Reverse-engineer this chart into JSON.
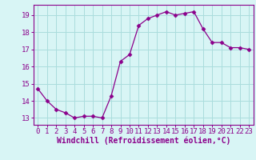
{
  "x": [
    0,
    1,
    2,
    3,
    4,
    5,
    6,
    7,
    8,
    9,
    10,
    11,
    12,
    13,
    14,
    15,
    16,
    17,
    18,
    19,
    20,
    21,
    22,
    23
  ],
  "y": [
    14.7,
    14.0,
    13.5,
    13.3,
    13.0,
    13.1,
    13.1,
    13.0,
    14.3,
    16.3,
    16.7,
    18.4,
    18.8,
    19.0,
    19.2,
    19.0,
    19.1,
    19.2,
    18.2,
    17.4,
    17.4,
    17.1,
    17.1,
    17.0
  ],
  "line_color": "#8B008B",
  "marker": "D",
  "marker_size": 2.5,
  "bg_color": "#d8f5f5",
  "grid_color": "#aadddd",
  "xlabel": "Windchill (Refroidissement éolien,°C)",
  "xlabel_color": "#8B008B",
  "xlabel_fontsize": 7,
  "ylim": [
    12.6,
    19.6
  ],
  "yticks": [
    13,
    14,
    15,
    16,
    17,
    18,
    19
  ],
  "xtick_labels": [
    "0",
    "1",
    "2",
    "3",
    "4",
    "5",
    "6",
    "7",
    "8",
    "9",
    "10",
    "11",
    "12",
    "13",
    "14",
    "15",
    "16",
    "17",
    "18",
    "19",
    "20",
    "21",
    "22",
    "23"
  ],
  "tick_color": "#8B008B",
  "tick_fontsize": 6.5,
  "border_color": "#8B008B",
  "xlim": [
    -0.5,
    23.5
  ]
}
